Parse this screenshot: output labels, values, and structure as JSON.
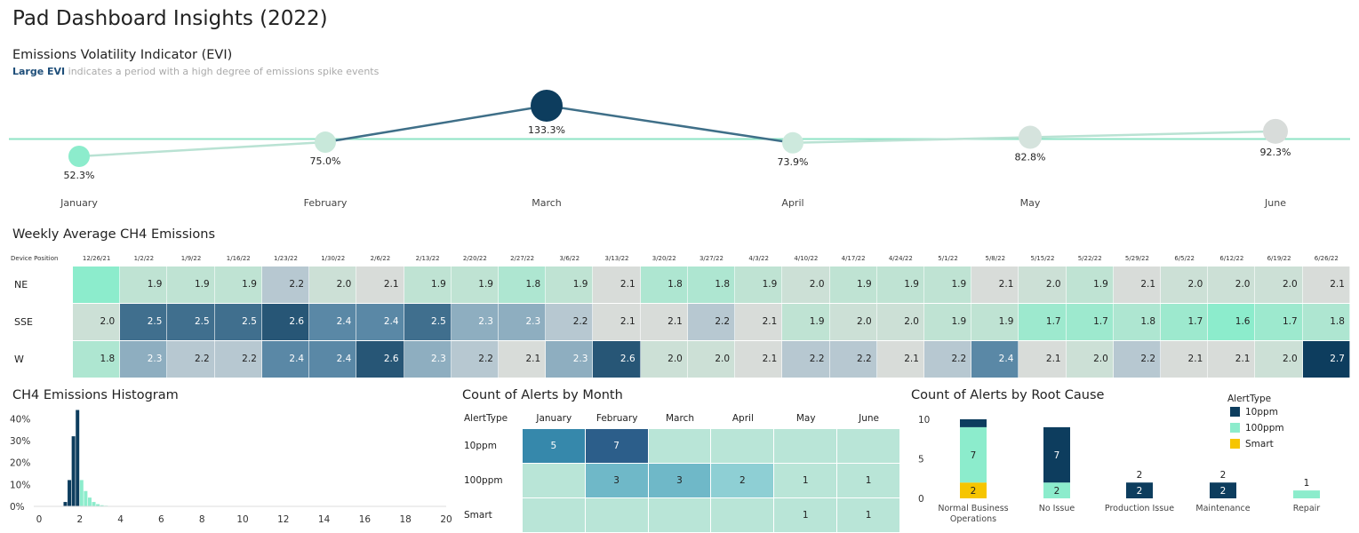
{
  "page": {
    "title": "Pad Dashboard Insights (2022)",
    "evi_title": "Emissions Volatility Indicator (EVI)",
    "evi_sub_highlight": "Large EVI",
    "evi_sub_rest": " indicates a period with a high degree of emissions spike events",
    "weekly_title": "Weekly Average CH4 Emissions",
    "hist_title": "CH4 Emissions Histogram",
    "alerts_month_title": "Count of Alerts by Month",
    "alerts_root_title": "Count of Alerts by Root Cause"
  },
  "colors": {
    "navy": "#0d3d5e",
    "mint": "#8ceccc",
    "yellow": "#f6c500",
    "pale": "#b9e5d7",
    "ref_line": "#8fe3c6"
  },
  "chart_data": [
    {
      "id": "evi",
      "type": "line",
      "categories": [
        "January",
        "February",
        "March",
        "April",
        "May",
        "June"
      ],
      "values": [
        52.3,
        75.0,
        133.3,
        73.9,
        82.8,
        92.3
      ],
      "labels": [
        "52.3%",
        "75.0%",
        "133.3%",
        "73.9%",
        "82.8%",
        "92.3%"
      ],
      "reference_line": 80,
      "ylim": [
        40,
        145
      ],
      "colors": [
        "#8ceccc",
        "#c8e8da",
        "#0d3d5e",
        "#cde9dd",
        "#d5e3dd",
        "#d8dcda"
      ]
    },
    {
      "id": "weekly_heatmap",
      "type": "heatmap",
      "row_header": "Device Position",
      "columns": [
        "12/26/21",
        "1/2/22",
        "1/9/22",
        "1/16/22",
        "1/23/22",
        "1/30/22",
        "2/6/22",
        "2/13/22",
        "2/20/22",
        "2/27/22",
        "3/6/22",
        "3/13/22",
        "3/20/22",
        "3/27/22",
        "4/3/22",
        "4/10/22",
        "4/17/22",
        "4/24/22",
        "5/1/22",
        "5/8/22",
        "5/15/22",
        "5/22/22",
        "5/29/22",
        "6/5/22",
        "6/12/22",
        "6/19/22",
        "6/26/22"
      ],
      "rows": [
        {
          "name": "NE",
          "values": [
            null,
            1.9,
            1.9,
            1.9,
            2.2,
            2.0,
            2.1,
            1.9,
            1.9,
            1.8,
            1.9,
            2.1,
            1.8,
            1.8,
            1.9,
            2.0,
            1.9,
            1.9,
            1.9,
            2.1,
            2.0,
            1.9,
            2.1,
            2.0,
            2.0,
            2.0,
            2.1
          ]
        },
        {
          "name": "SSE",
          "values": [
            2.0,
            2.5,
            2.5,
            2.5,
            2.6,
            2.4,
            2.4,
            2.5,
            2.3,
            2.3,
            2.2,
            2.1,
            2.1,
            2.2,
            2.1,
            1.9,
            2.0,
            2.0,
            1.9,
            1.9,
            1.7,
            1.7,
            1.8,
            1.7,
            1.6,
            1.7,
            1.8
          ]
        },
        {
          "name": "W",
          "values": [
            1.8,
            2.3,
            2.2,
            2.2,
            2.4,
            2.4,
            2.6,
            2.3,
            2.2,
            2.1,
            2.3,
            2.6,
            2.0,
            2.0,
            2.1,
            2.2,
            2.2,
            2.1,
            2.2,
            2.4,
            2.1,
            2.0,
            2.2,
            2.1,
            2.1,
            2.0,
            2.7
          ]
        }
      ]
    },
    {
      "id": "histogram",
      "type": "bar",
      "x_ticks": [
        0,
        2,
        4,
        6,
        8,
        10,
        12,
        14,
        16,
        18,
        20
      ],
      "y_ticks": [
        "0%",
        "10%",
        "20%",
        "30%",
        "40%"
      ],
      "xlim": [
        0,
        20
      ],
      "ylim": [
        0,
        43
      ],
      "bin_width": 0.2,
      "series": [
        {
          "color": "#0d3d5e",
          "bins": [
            [
              1.2,
              2
            ],
            [
              1.4,
              12
            ],
            [
              1.6,
              32
            ],
            [
              1.8,
              44
            ]
          ]
        },
        {
          "color": "#8ceccc",
          "bins": [
            [
              2.0,
              12
            ],
            [
              2.2,
              7
            ],
            [
              2.4,
              4
            ],
            [
              2.6,
              2
            ],
            [
              2.8,
              1
            ],
            [
              3.0,
              0.5
            ],
            [
              3.2,
              0.3
            ]
          ]
        }
      ]
    },
    {
      "id": "alerts_month",
      "type": "table",
      "row_header": "AlertType",
      "columns": [
        "January",
        "February",
        "March",
        "April",
        "May",
        "June"
      ],
      "rows": [
        {
          "name": "10ppm",
          "values": [
            5,
            7,
            null,
            null,
            null,
            null
          ]
        },
        {
          "name": "100ppm",
          "values": [
            null,
            3,
            3,
            2,
            1,
            1
          ]
        },
        {
          "name": "Smart",
          "values": [
            null,
            null,
            null,
            null,
            1,
            1
          ]
        }
      ]
    },
    {
      "id": "alerts_root",
      "type": "bar",
      "stacked": true,
      "categories": [
        "Normal Business Operations",
        "No Issue",
        "Production Issue",
        "Maintenance",
        "Repair"
      ],
      "category_lines": [
        [
          "Normal Business",
          "Operations"
        ],
        [
          "No Issue"
        ],
        [
          "Production Issue"
        ],
        [
          "Maintenance"
        ],
        [
          "Repair"
        ]
      ],
      "y_ticks": [
        0,
        5,
        10
      ],
      "ylim": [
        0,
        10.5
      ],
      "legend_title": "AlertType",
      "legend_position": "top-right",
      "series": [
        {
          "name": "Smart",
          "color": "#f6c500",
          "values": [
            2,
            0,
            0,
            0,
            0
          ]
        },
        {
          "name": "100ppm",
          "color": "#8ceccc",
          "values": [
            7,
            2,
            0,
            0,
            1
          ]
        },
        {
          "name": "10ppm",
          "color": "#0d3d5e",
          "values": [
            1,
            7,
            2,
            2,
            0
          ]
        }
      ],
      "legend_order": [
        "10ppm",
        "100ppm",
        "Smart"
      ]
    }
  ]
}
